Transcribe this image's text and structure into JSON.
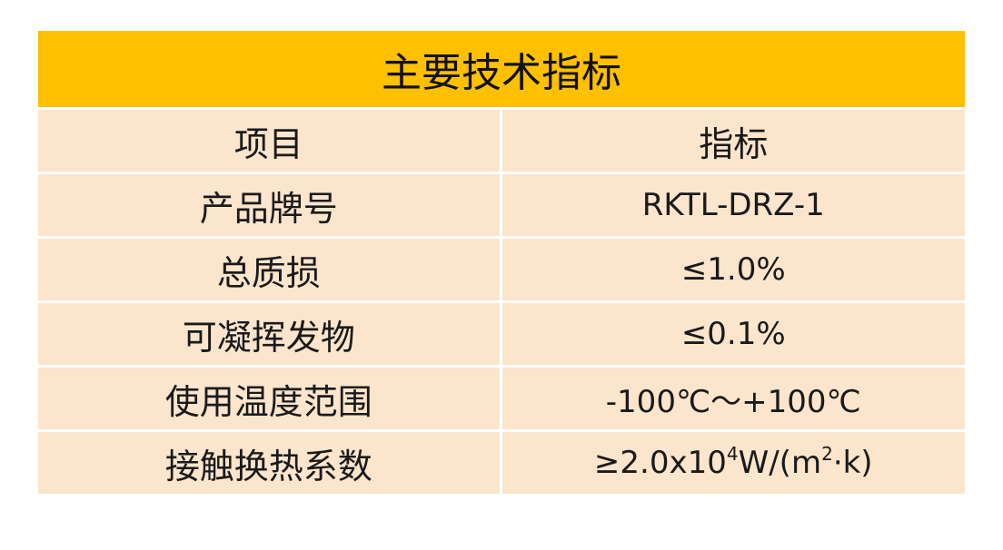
{
  "table": {
    "title": "主要技术指标",
    "header": {
      "item": "项目",
      "spec": "指标"
    },
    "rows": [
      {
        "item": "产品牌号",
        "value": "RKTL-DRZ-1"
      },
      {
        "item": "总质损",
        "value": "≤1.0%"
      },
      {
        "item": "可凝挥发物",
        "value": "≤0.1%"
      },
      {
        "item": "使用温度范围",
        "value": "-100℃～+100℃"
      },
      {
        "item": "接触换热系数",
        "value_prefix": "≥2.0x10",
        "value_exp": "4",
        "value_mid": "W/(m",
        "value_exp2": "2",
        "value_suffix": "·k)"
      }
    ]
  }
}
